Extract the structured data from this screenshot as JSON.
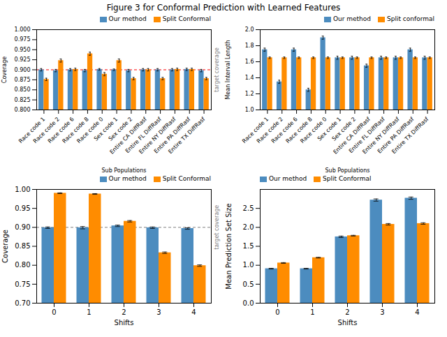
{
  "title": "Figure 3 for Conformal Prediction with Learned Features",
  "chart_data": [
    {
      "type": "bar",
      "xlabel": "Sub Populations",
      "ylabel": "Coverage",
      "categories": [
        "Race code 1",
        "Race code 2",
        "Race code 6",
        "Race code 8",
        "Race code 0",
        "Sex code 1",
        "Sex code 2",
        "Entire CA DiffRasf",
        "Entire FL DiffRasf",
        "Entire NY DiffRasf",
        "Entire PA DiffRasf",
        "Entire TX DiffRasf"
      ],
      "series": [
        {
          "name": "Our method",
          "color": "#4C8CBF",
          "values": [
            0.9,
            0.898,
            0.9,
            0.898,
            0.901,
            0.9,
            0.898,
            0.9,
            0.9,
            0.9,
            0.901,
            0.898
          ],
          "errors": [
            0.003,
            0.003,
            0.003,
            0.003,
            0.002,
            0.002,
            0.003,
            0.003,
            0.003,
            0.003,
            0.003,
            0.003
          ]
        },
        {
          "name": "Split Conformal",
          "color": "#FF8C00",
          "values": [
            0.876,
            0.923,
            0.901,
            0.94,
            0.889,
            0.923,
            0.878,
            0.9,
            0.878,
            0.901,
            0.901,
            0.878
          ],
          "errors": [
            0.003,
            0.004,
            0.003,
            0.004,
            0.004,
            0.004,
            0.003,
            0.003,
            0.003,
            0.003,
            0.003,
            0.003
          ]
        }
      ],
      "ylim": [
        0.8,
        1.0
      ],
      "yticks": [
        {
          "value": 0.8,
          "label": "0.800"
        },
        0.825,
        {
          "value": 0.85,
          "label": "0.850"
        },
        0.875,
        {
          "value": 0.9,
          "label": "0.900"
        },
        0.925,
        {
          "value": 0.95,
          "label": "0.950"
        },
        0.975,
        {
          "value": 1.0,
          "label": "1.000"
        }
      ],
      "target_line": {
        "value": 0.9,
        "label": "target coverage",
        "color": "red"
      },
      "legend": "upper right"
    },
    {
      "type": "bar",
      "xlabel": "Sub Populations",
      "ylabel": "Mean Interval Length",
      "categories": [
        "Race code 1",
        "Race code 2",
        "Race code 6",
        "Race code 8",
        "Race code 0",
        "Sex code 1",
        "Sex code 2",
        "Entire CA DiffRasf",
        "Entire FL DiffRasf",
        "Entire NY DiffRasf",
        "Entire PA DiffRasf",
        "Entire TX DiffRasf"
      ],
      "series": [
        {
          "name": "Our method",
          "color": "#4C8CBF",
          "values": [
            1.75,
            1.35,
            1.75,
            1.25,
            1.9,
            1.65,
            1.65,
            1.55,
            1.65,
            1.65,
            1.75,
            1.65
          ],
          "errors": [
            0.02,
            0.02,
            0.02,
            0.02,
            0.02,
            0.02,
            0.02,
            0.02,
            0.02,
            0.02,
            0.02,
            0.02
          ]
        },
        {
          "name": "Split conformal",
          "color": "#FF8C00",
          "values": [
            1.65,
            1.65,
            1.65,
            1.65,
            1.65,
            1.65,
            1.65,
            1.65,
            1.65,
            1.65,
            1.65,
            1.65
          ],
          "errors": [
            0.01,
            0.01,
            0.01,
            0.01,
            0.01,
            0.01,
            0.01,
            0.01,
            0.01,
            0.01,
            0.01,
            0.01
          ]
        }
      ],
      "ylim": [
        1.0,
        2.0
      ],
      "yticks": [
        {
          "value": 1.0,
          "label": "1.0"
        },
        1.2,
        1.4,
        1.6,
        1.8,
        {
          "value": 2.0,
          "label": "2.0"
        }
      ],
      "legend": "upper right"
    },
    {
      "type": "bar",
      "xlabel": "Shifts",
      "ylabel": "Coverage",
      "categories": [
        0,
        1,
        2,
        3,
        4
      ],
      "series": [
        {
          "name": "Our method",
          "color": "#4C8CBF",
          "values": [
            0.899,
            0.899,
            0.904,
            0.899,
            0.897
          ],
          "errors": [
            0.002,
            0.003,
            0.002,
            0.002,
            0.002
          ]
        },
        {
          "name": "Split Conformal",
          "color": "#FF8C00",
          "values": [
            0.99,
            0.988,
            0.916,
            0.833,
            0.799
          ],
          "errors": [
            0.001,
            0.001,
            0.002,
            0.002,
            0.002
          ]
        }
      ],
      "ylim": [
        0.7,
        1.0
      ],
      "yticks": [
        {
          "value": 0.7,
          "label": "0.70"
        },
        0.75,
        {
          "value": 0.8,
          "label": "0.80"
        },
        0.85,
        {
          "value": 0.9,
          "label": "0.90"
        },
        0.95,
        {
          "value": 1.0,
          "label": "1.00"
        }
      ],
      "target_line": {
        "value": 0.9,
        "label": "target coverage",
        "color": "gray"
      },
      "legend": "upper right"
    },
    {
      "type": "bar",
      "xlabel": "Shifts",
      "ylabel": "Mean Prediction Set Size",
      "categories": [
        0,
        1,
        2,
        3,
        4
      ],
      "series": [
        {
          "name": "Our method",
          "color": "#4C8CBF",
          "values": [
            0.91,
            0.91,
            1.75,
            2.72,
            2.77
          ],
          "errors": [
            0.01,
            0.01,
            0.02,
            0.03,
            0.03
          ]
        },
        {
          "name": "Split Conformal",
          "color": "#FF8C00",
          "values": [
            1.06,
            1.2,
            1.78,
            2.08,
            2.1
          ],
          "errors": [
            0.01,
            0.01,
            0.01,
            0.02,
            0.02
          ]
        }
      ],
      "ylim": [
        0.0,
        3.0
      ],
      "yticks": [
        {
          "value": 0.0,
          "label": "0.0"
        },
        0.5,
        {
          "value": 1.0,
          "label": "1.0"
        },
        1.5,
        {
          "value": 2.0,
          "label": "2.0"
        },
        2.5
      ],
      "legend": "upper left"
    }
  ]
}
